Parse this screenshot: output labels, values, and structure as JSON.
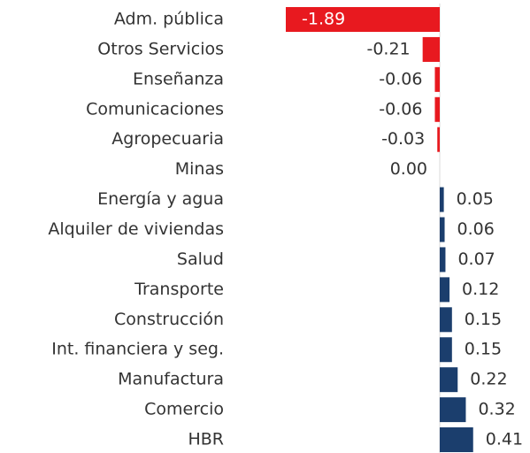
{
  "chart_data": {
    "type": "bar",
    "orientation": "horizontal",
    "categories": [
      "Adm. pública",
      "Otros Servicios",
      "Enseñanza",
      "Comunicaciones",
      "Agropecuaria",
      "Minas",
      "Energía y agua",
      "Alquiler de viviendas",
      "Salud",
      "Transporte",
      "Construcción",
      "Int. financiera y seg.",
      "Manufactura",
      "Comercio",
      "HBR"
    ],
    "values": [
      -1.89,
      -0.21,
      -0.06,
      -0.06,
      -0.03,
      0.0,
      0.05,
      0.06,
      0.07,
      0.12,
      0.15,
      0.15,
      0.22,
      0.32,
      0.41
    ],
    "value_labels": [
      "-1.89",
      "-0.21",
      "-0.06",
      "-0.06",
      "-0.03",
      "0.00",
      "0.05",
      "0.06",
      "0.07",
      "0.12",
      "0.15",
      "0.15",
      "0.22",
      "0.32",
      "0.41"
    ],
    "color": "#1b3e6d",
    "negative_color": "#e8191f"
  }
}
